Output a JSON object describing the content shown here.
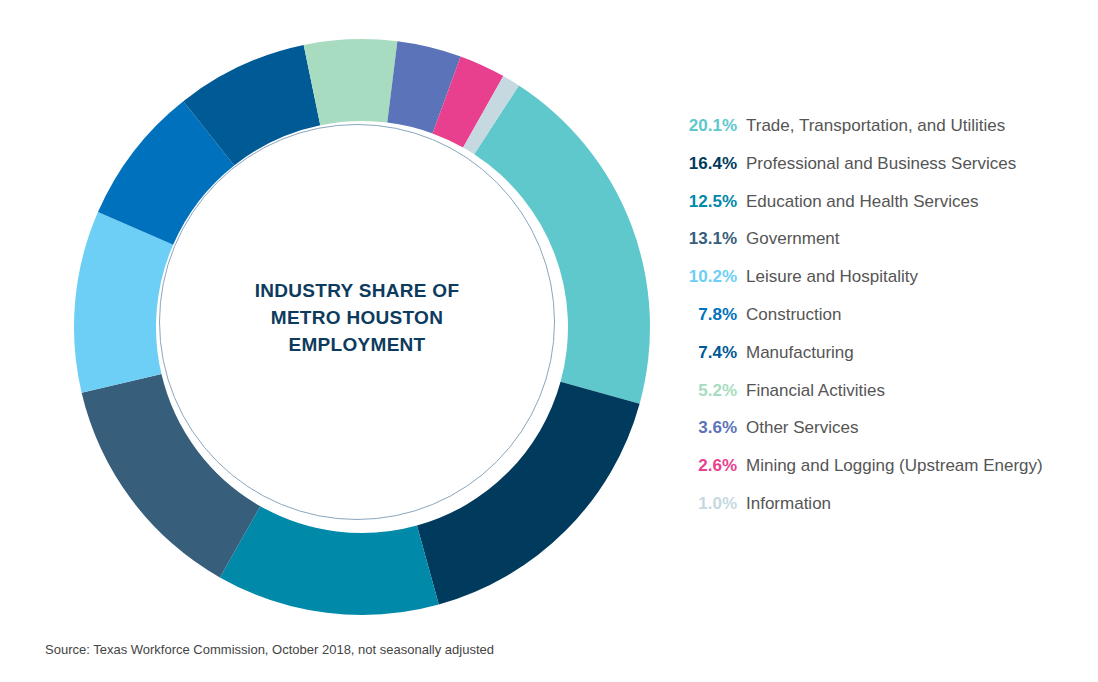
{
  "chart_data": {
    "type": "pie",
    "title": "INDUSTRY SHARE OF METRO HOUSTON EMPLOYMENT",
    "categories": [
      "Trade, Transportation, and Utilities",
      "Professional and Business Services",
      "Education and Health Services",
      "Government",
      "Leisure and Hospitality",
      "Construction",
      "Manufacturing",
      "Financial Activities",
      "Other Services",
      "Mining and Logging (Upstream Energy)",
      "Information"
    ],
    "values": [
      20.1,
      16.4,
      12.5,
      13.1,
      10.2,
      7.8,
      7.4,
      5.2,
      3.6,
      2.6,
      1.0
    ],
    "value_labels": [
      "20.1%",
      "16.4%",
      "12.5%",
      "13.1%",
      "10.2%",
      "7.8%",
      "7.4%",
      "5.2%",
      "3.6%",
      "2.6%",
      "1.0%"
    ],
    "colors": [
      "#5ec8cc",
      "#003a5d",
      "#0089a8",
      "#375e7a",
      "#6dcff6",
      "#0071bc",
      "#005a96",
      "#a8dcc0",
      "#5b73b8",
      "#e8408e",
      "#c6d9e0"
    ],
    "source": "Source: Texas Workforce Commission, October 2018, not seasonally adjusted"
  }
}
